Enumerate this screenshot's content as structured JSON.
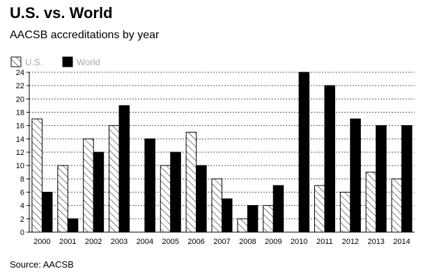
{
  "chart_data": {
    "type": "bar",
    "title": "U.S. vs. World",
    "subtitle": "AACSB accreditations by year",
    "source": "Source: AACSB",
    "categories": [
      "2000",
      "2001",
      "2002",
      "2003",
      "2004",
      "2005",
      "2006",
      "2007",
      "2008",
      "2009",
      "2010",
      "2011",
      "2012",
      "2013",
      "2014"
    ],
    "series": [
      {
        "name": "U.S.",
        "pattern": "hatched",
        "color": "#ffffff",
        "values": [
          17,
          10,
          14,
          16,
          0,
          10,
          15,
          8,
          2,
          4,
          0,
          7,
          6,
          9,
          8
        ]
      },
      {
        "name": "World",
        "pattern": "solid",
        "color": "#000000",
        "values": [
          6,
          2,
          12,
          19,
          14,
          12,
          10,
          5,
          4,
          7,
          24,
          22,
          17,
          16,
          16
        ]
      }
    ],
    "ylim": [
      0,
      24
    ],
    "yticks": [
      0,
      2,
      4,
      6,
      8,
      10,
      12,
      14,
      16,
      18,
      20,
      22,
      24
    ],
    "grid": true,
    "legend_position": "top-left"
  }
}
